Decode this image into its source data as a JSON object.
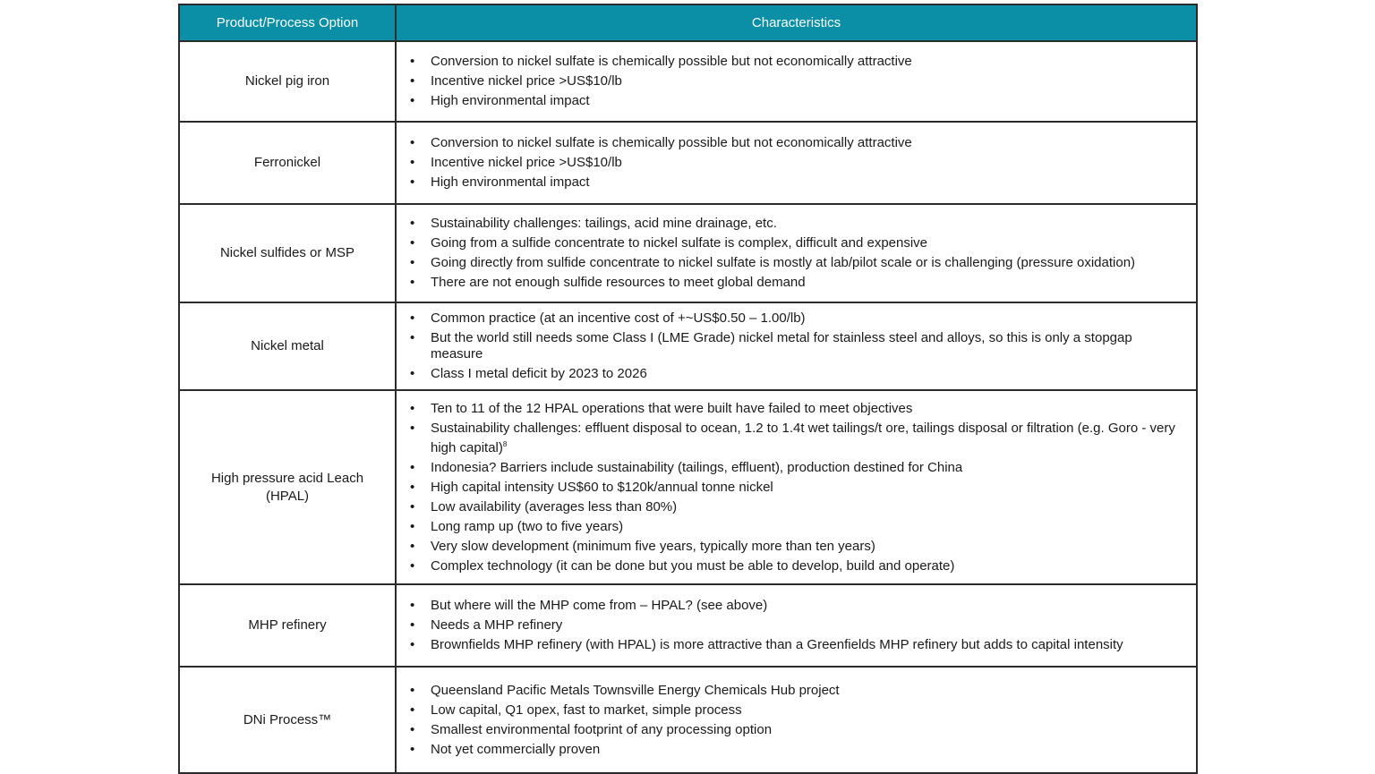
{
  "table": {
    "header": [
      "Product/Process Option",
      "Characteristics"
    ],
    "rows": [
      {
        "option": "Nickel pig iron",
        "items": [
          "Conversion to nickel sulfate is chemically possible but not economically attractive",
          "Incentive nickel price >US$10/lb",
          "High environmental impact"
        ]
      },
      {
        "option": "Ferronickel",
        "items": [
          "Conversion to nickel sulfate is chemically possible but not economically attractive",
          "Incentive nickel price >US$10/lb",
          "High environmental impact"
        ]
      },
      {
        "option": "Nickel sulfides or MSP",
        "items": [
          "Sustainability challenges: tailings, acid mine drainage, etc.",
          "Going from a sulfide concentrate to nickel sulfate is complex, difficult and expensive",
          "Going directly from sulfide concentrate to nickel sulfate is mostly at lab/pilot scale or is challenging (pressure oxidation)",
          "There are not enough sulfide resources to meet global demand"
        ]
      },
      {
        "option": "Nickel metal",
        "items": [
          "Common practice (at an incentive cost of +~US$0.50 – 1.00/lb)",
          "But the world still needs some Class I (LME Grade) nickel metal for stainless steel and alloys, so this is only a stopgap measure",
          "Class I metal deficit by 2023 to 2026"
        ]
      },
      {
        "option": "High pressure acid Leach (HPAL)",
        "items": [
          "Ten to 11 of the 12 HPAL operations that were built have failed to meet objectives",
          {
            "text": "Sustainability challenges: effluent disposal to ocean, 1.2 to 1.4t wet tailings/t ore, tailings disposal or filtration (e.g. Goro - very high capital)",
            "sup": "8"
          },
          "Indonesia? Barriers include sustainability (tailings, effluent), production destined for China",
          "High capital intensity US$60 to $120k/annual tonne nickel",
          "Low availability (averages less than 80%)",
          "Long ramp up (two to five years)",
          "Very slow development (minimum five years, typically more than ten years)",
          "Complex technology (it can be done but you must be able to develop, build and operate)"
        ]
      },
      {
        "option": "MHP refinery",
        "items": [
          "But where will the MHP come from – HPAL? (see above)",
          "Needs a MHP refinery",
          "Brownfields MHP refinery (with HPAL) is more attractive than a Greenfields MHP refinery but adds to capital intensity"
        ]
      },
      {
        "option": "DNi Process™",
        "items": [
          "Queensland Pacific Metals Townsville Energy Chemicals Hub project",
          "Low capital, Q1 opex, fast to market, simple process",
          "Smallest environmental footprint of any processing option",
          "Not yet commercially proven"
        ]
      }
    ]
  }
}
